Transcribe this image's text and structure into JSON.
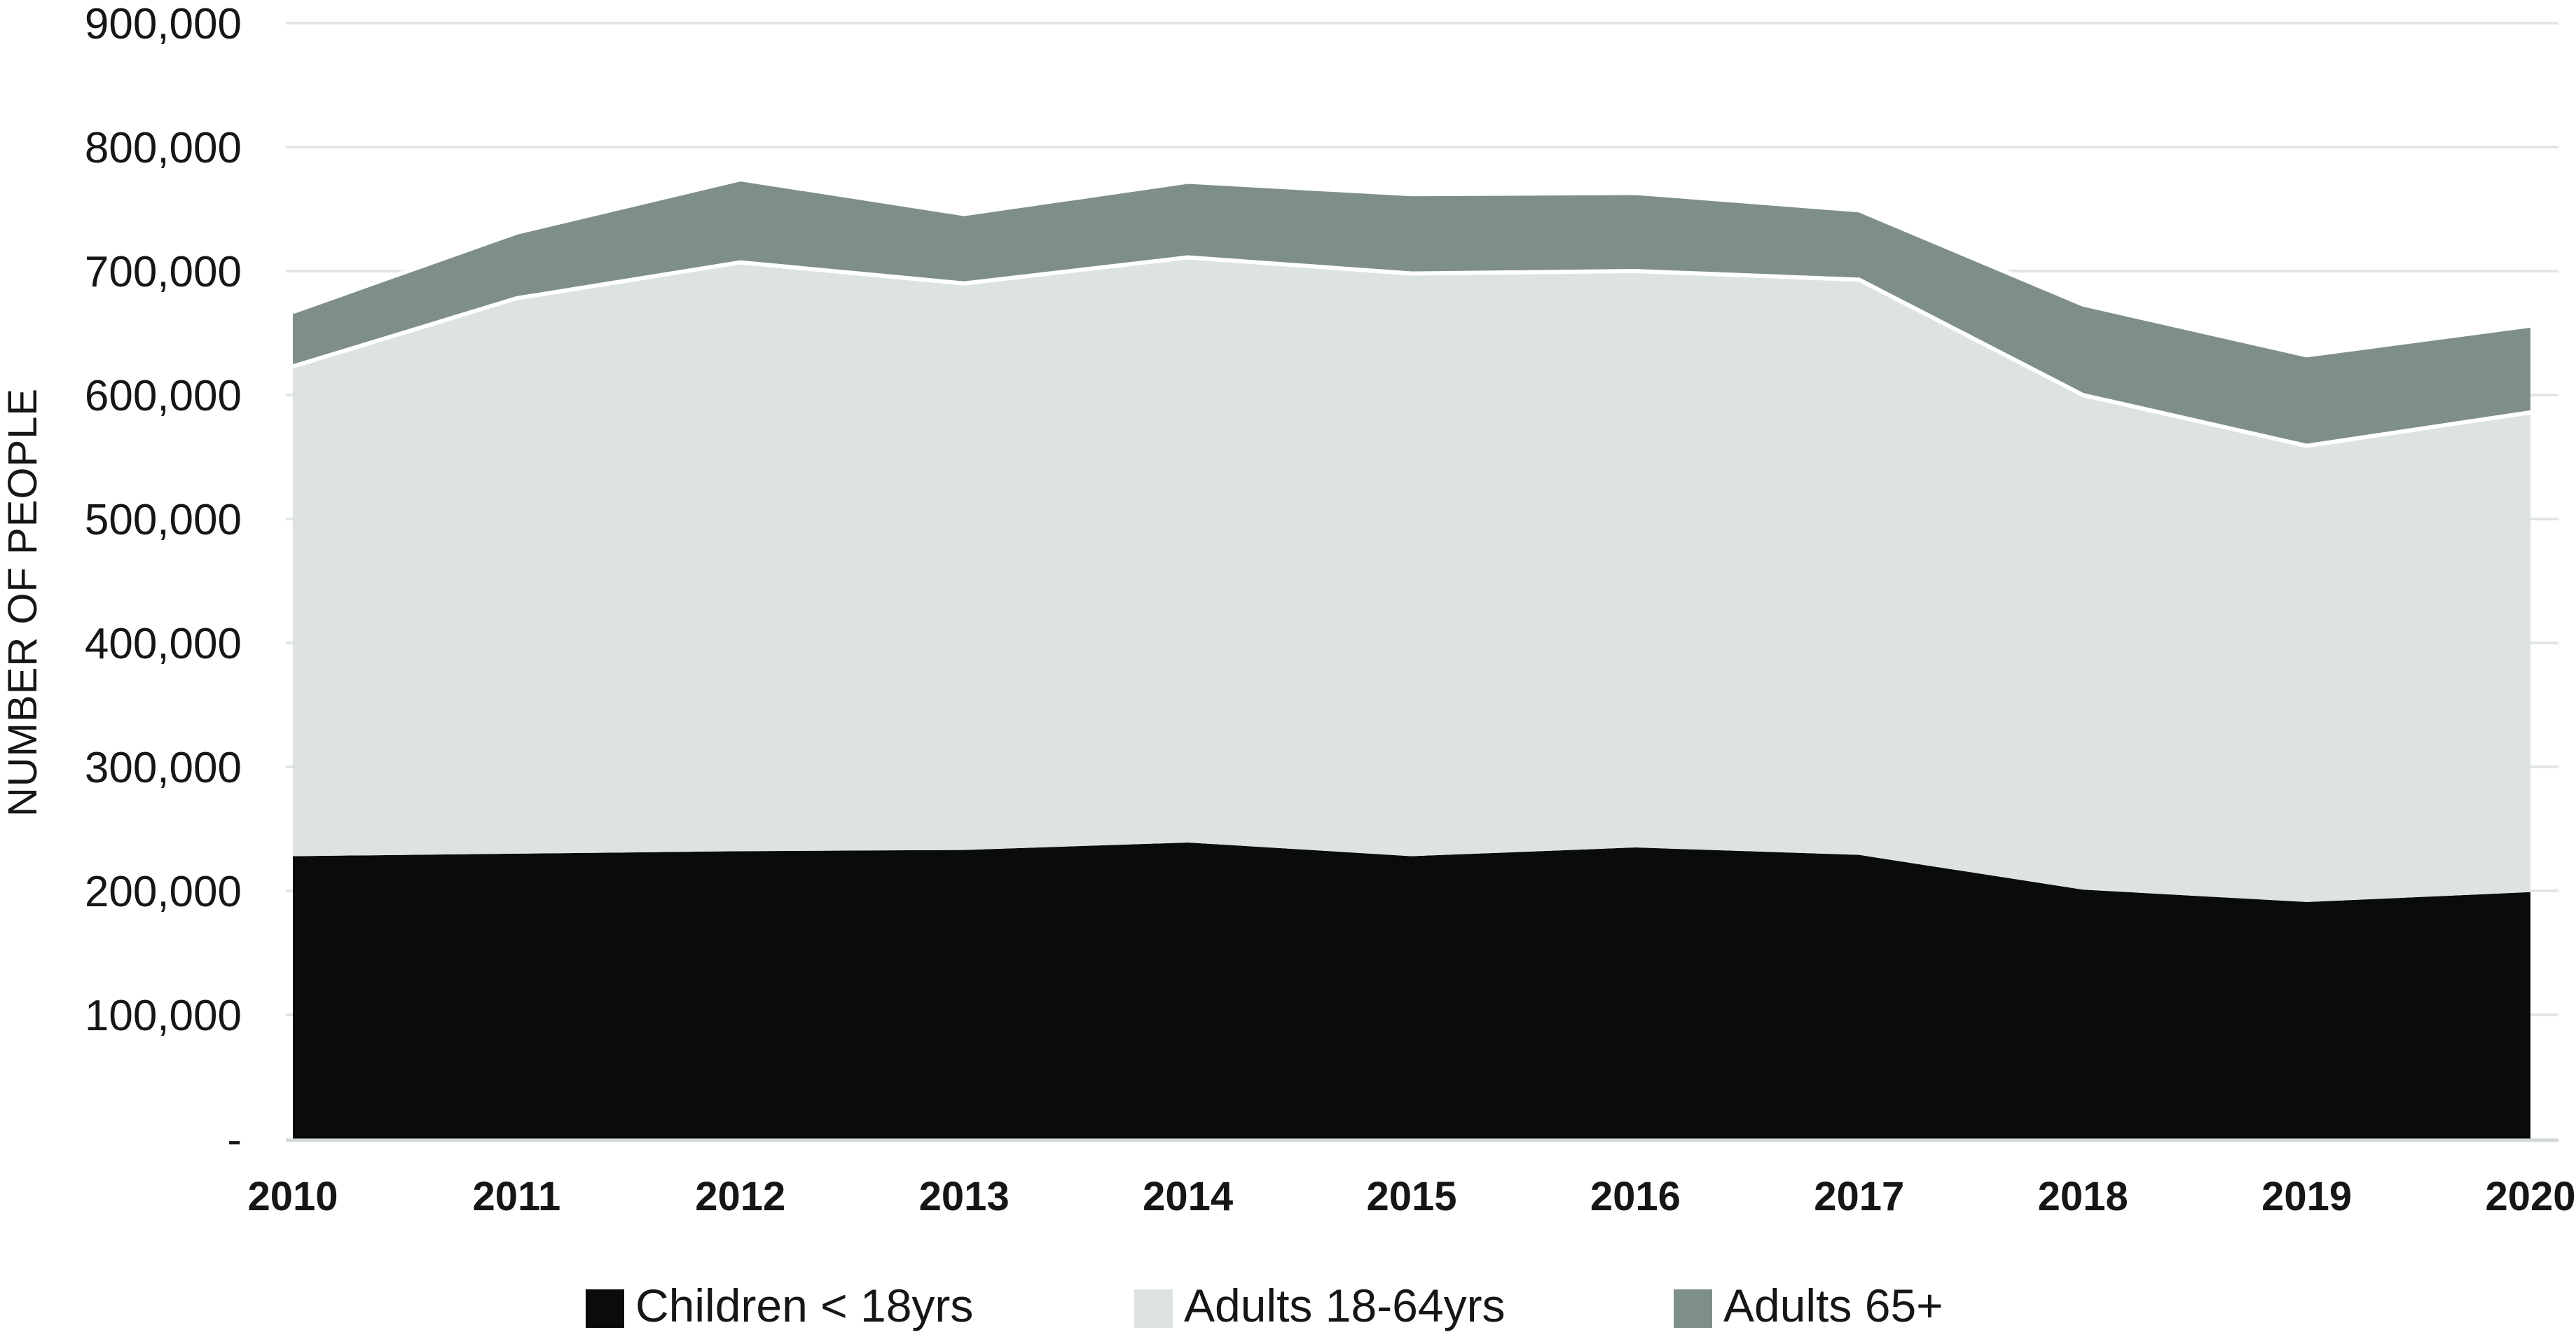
{
  "chart_data": {
    "type": "area",
    "stacked": true,
    "title": "",
    "xlabel": "",
    "ylabel": "NUMBER OF PEOPLE",
    "x": [
      "2010",
      "2011",
      "2012",
      "2013",
      "2014",
      "2015",
      "2016",
      "2017",
      "2018",
      "2019",
      "2020"
    ],
    "series": [
      {
        "name": "Children < 18yrs",
        "values": [
          228000,
          230000,
          232000,
          233000,
          239000,
          228000,
          235000,
          229000,
          201000,
          191000,
          199000
        ]
      },
      {
        "name": "Adults 18-64yrs",
        "values": [
          395000,
          448000,
          475000,
          457000,
          472000,
          470000,
          465000,
          464000,
          399000,
          368000,
          387000
        ]
      },
      {
        "name": "Adults 65+",
        "values": [
          44000,
          53000,
          67000,
          56000,
          61000,
          64000,
          63000,
          56000,
          73000,
          73000,
          70000
        ]
      }
    ],
    "cumulative_tops_reference": [
      {
        "name": "Children < 18yrs top",
        "values": [
          228000,
          230000,
          232000,
          233000,
          239000,
          228000,
          235000,
          229000,
          201000,
          191000,
          199000
        ]
      },
      {
        "name": "Adults 18-64yrs top",
        "values": [
          623000,
          678000,
          707000,
          690000,
          711000,
          698000,
          700000,
          693000,
          600000,
          559000,
          586000
        ]
      },
      {
        "name": "Total top",
        "values": [
          667000,
          731000,
          774000,
          746000,
          772000,
          762000,
          763000,
          749000,
          673000,
          632000,
          656000
        ]
      }
    ],
    "ylim": [
      0,
      900000
    ],
    "ytick_step": 100000,
    "ytick_labels_top_to_bottom": [
      "900,000",
      "800,000",
      "700,000",
      "600,000",
      "500,000",
      "400,000",
      "300,000",
      "200,000",
      "100,000",
      "-"
    ],
    "grid": true,
    "legend_position": "bottom"
  },
  "legend": {
    "items": [
      {
        "label": "Children < 18yrs"
      },
      {
        "label": "Adults 18-64yrs"
      },
      {
        "label": "Adults 65+"
      }
    ]
  },
  "colors": {
    "series": [
      "#0a0c0b",
      "#dce3e1",
      "#7e8e8b"
    ],
    "separator": "#ffffff",
    "gridline": "#e1e6e5",
    "axis_line": "#d2d8d7",
    "text": "#161616",
    "background": "#ffffff"
  }
}
